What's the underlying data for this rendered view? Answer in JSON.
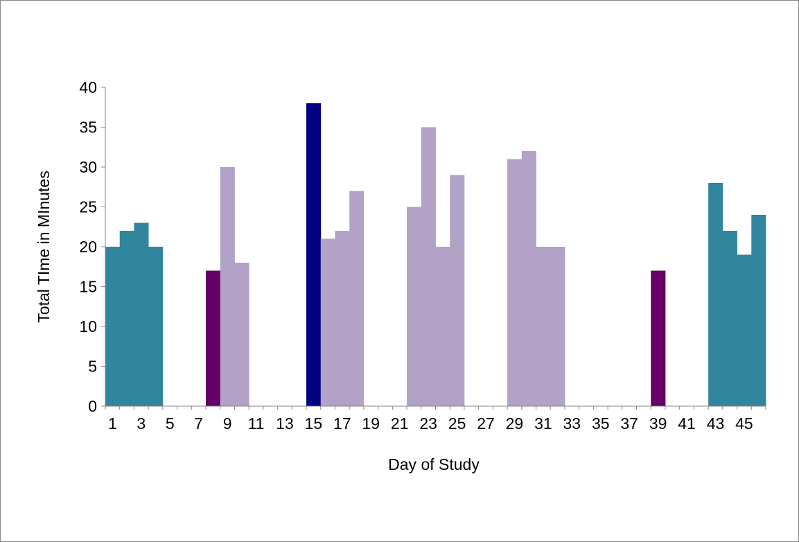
{
  "chart_data": {
    "type": "bar",
    "title": "",
    "xlabel": "Day of Study",
    "ylabel": "Total TIme in MInutes",
    "ylim": [
      0,
      40
    ],
    "yticks": [
      0,
      5,
      10,
      15,
      20,
      25,
      30,
      35,
      40
    ],
    "xticks": [
      1,
      3,
      5,
      7,
      9,
      11,
      13,
      15,
      17,
      19,
      21,
      23,
      25,
      27,
      29,
      31,
      33,
      35,
      37,
      39,
      41,
      43,
      45
    ],
    "grid": false,
    "legend": "none",
    "days": [
      1,
      2,
      3,
      4,
      5,
      6,
      7,
      8,
      9,
      10,
      11,
      12,
      13,
      14,
      15,
      16,
      17,
      18,
      19,
      20,
      21,
      22,
      23,
      24,
      25,
      26,
      27,
      28,
      29,
      30,
      31,
      32,
      33,
      34,
      35,
      36,
      37,
      38,
      39,
      40,
      41,
      42,
      43,
      44,
      45,
      46
    ],
    "values": [
      20,
      22,
      23,
      20,
      0,
      0,
      0,
      17,
      30,
      18,
      0,
      0,
      0,
      0,
      38,
      21,
      22,
      27,
      0,
      0,
      0,
      25,
      35,
      20,
      29,
      0,
      0,
      0,
      31,
      32,
      20,
      20,
      0,
      0,
      0,
      0,
      0,
      0,
      17,
      0,
      0,
      0,
      28,
      22,
      19,
      24
    ],
    "bar_groups": [
      "teal",
      "teal",
      "teal",
      "teal",
      "none",
      "none",
      "none",
      "purple",
      "lavender",
      "lavender",
      "none",
      "none",
      "none",
      "none",
      "navy",
      "lavender",
      "lavender",
      "lavender",
      "none",
      "none",
      "none",
      "lavender",
      "lavender",
      "lavender",
      "lavender",
      "none",
      "none",
      "none",
      "lavender",
      "lavender",
      "lavender",
      "lavender",
      "none",
      "none",
      "none",
      "none",
      "none",
      "none",
      "purple",
      "none",
      "none",
      "none",
      "teal",
      "teal",
      "teal",
      "teal"
    ],
    "colors": {
      "teal": "#31859c",
      "lavender": "#b3a2c7",
      "purple": "#660066",
      "navy": "#000080",
      "axis": "#868686"
    }
  }
}
